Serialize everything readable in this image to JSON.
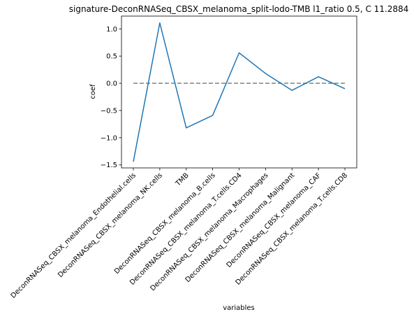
{
  "chart_data": {
    "type": "line",
    "title": "signature-DeconRNASeq_CBSX_melanoma_split-lodo-TMB l1_ratio 0.5, C 11.2884",
    "xlabel": "variables",
    "ylabel": "coef",
    "categories": [
      "DeconRNASeq_CBSX_melanoma_Endothelial.cells",
      "DeconRNASeq_CBSX_melanoma_NK.cells",
      "TMB",
      "DeconRNASeq_CBSX_melanoma_B.cells",
      "DeconRNASeq_CBSX_melanoma_T.cells.CD4",
      "DeconRNASeq_CBSX_melanoma_Macrophages",
      "DeconRNASeq_CBSX_melanoma_Malignant",
      "DeconRNASeq_CBSX_melanoma_CAF",
      "DeconRNASeq_CBSX_melanoma_T.cells.CD8"
    ],
    "series": [
      {
        "values": [
          -1.44,
          1.11,
          -0.82,
          -0.59,
          0.56,
          0.18,
          -0.13,
          0.12,
          -0.1
        ],
        "color": "#1f77b4"
      }
    ],
    "reference_line": {
      "y": 0.0,
      "style": "dashed",
      "color": "#808080"
    },
    "yticks": [
      -1.5,
      -1.0,
      -0.5,
      0.0,
      0.5,
      1.0
    ],
    "ytick_labels": [
      "−1.5",
      "−1.0",
      "−0.5",
      "0.0",
      "0.5",
      "1.0"
    ],
    "ylim": [
      -1.555,
      1.235
    ],
    "grid": false
  }
}
